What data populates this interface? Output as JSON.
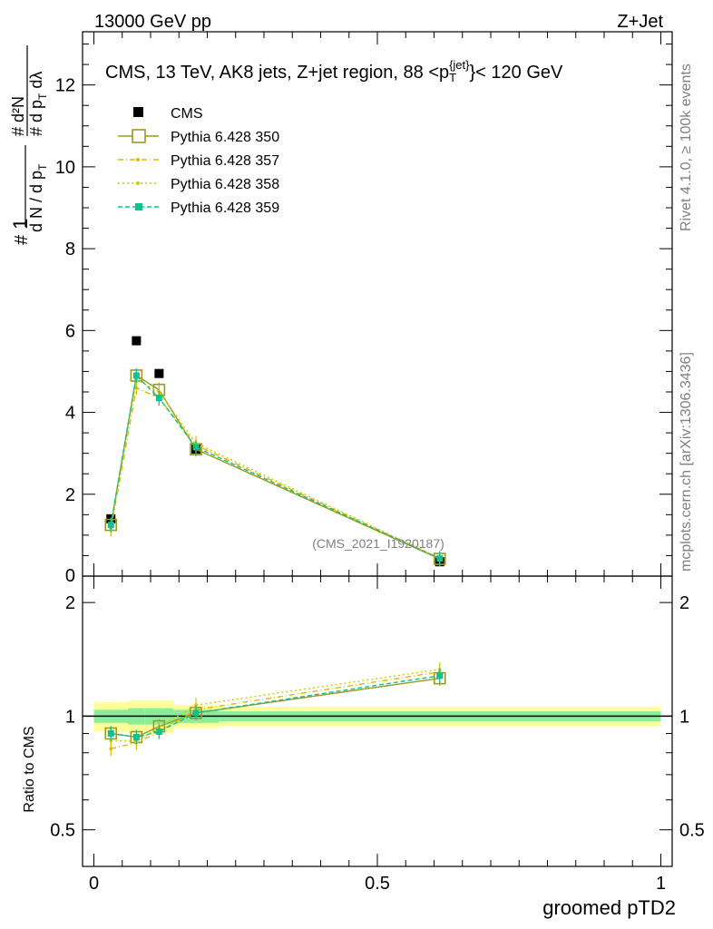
{
  "header": {
    "left": "13000 GeV pp",
    "right": "Z+Jet"
  },
  "side_labels": {
    "rivet": "Rivet 4.1.0, ≥ 100k events",
    "mcplots": "mcplots.cern.ch [arXiv:1306.3436]"
  },
  "chart_data": {
    "type": "line",
    "title": "CMS, 13 TeV, AK8 jets, Z+jet region, 88 <p_T^{jet}< 120 GeV",
    "title_parts": {
      "prefix": "CMS, 13 TeV, AK8 jets, Z+jet region, 88 <p",
      "sub": "T",
      "sup": "{jet}",
      "suffix": "}< 120 GeV"
    },
    "watermark": "(CMS_2021_I1920187)",
    "xlabel": "groomed pTD2",
    "ylabel_main": "1/(dN/dp_T) d²N/(dp_T dλ)",
    "ylabel_ratio": "Ratio to CMS",
    "xlim": [
      -0.02,
      1.02
    ],
    "ylim_main": [
      0,
      13.3
    ],
    "ylim_ratio": [
      0.4,
      2.35
    ],
    "x_ticks": [
      "0",
      "0.5",
      "1"
    ],
    "x_tick_values": [
      0,
      0.5,
      1
    ],
    "y_ticks_main": [
      "2",
      "4",
      "6",
      "8",
      "10",
      "12"
    ],
    "y_tick_values_main": [
      2,
      4,
      6,
      8,
      10,
      12
    ],
    "y_zero_label": "0",
    "y_ticks_ratio": [
      "0.5",
      "1",
      "2"
    ],
    "y_tick_values_ratio": [
      0.5,
      1,
      2
    ],
    "x": [
      0.03,
      0.075,
      0.115,
      0.18,
      0.61
    ],
    "bin_edges": [
      0,
      0.06,
      0.09,
      0.14,
      0.22,
      1.0
    ],
    "cms": {
      "name": "CMS",
      "values": [
        1.4,
        5.75,
        4.95,
        3.1,
        0.35
      ]
    },
    "band": {
      "inner": [
        0.04,
        0.05,
        0.05,
        0.04,
        0.03
      ],
      "outer": [
        0.09,
        0.1,
        0.1,
        0.07,
        0.06
      ]
    },
    "series": [
      {
        "name": "Pythia 6.428 350",
        "color": "#9a9a20",
        "style": "solid",
        "marker": "open-square",
        "values": [
          1.25,
          4.9,
          4.55,
          3.1,
          0.42
        ],
        "ratio": [
          0.9,
          0.88,
          0.94,
          1.02,
          1.26
        ]
      },
      {
        "name": "Pythia 6.428 357",
        "color": "#e0b800",
        "style": "dashdot",
        "marker": "small",
        "values": [
          1.15,
          4.6,
          4.35,
          3.2,
          0.43
        ],
        "ratio": [
          0.82,
          0.85,
          0.91,
          1.04,
          1.31
        ]
      },
      {
        "name": "Pythia 6.428 358",
        "color": "#cccc00",
        "style": "dotted",
        "marker": "small",
        "values": [
          1.2,
          4.8,
          4.5,
          3.25,
          0.44
        ],
        "ratio": [
          0.86,
          0.86,
          0.93,
          1.07,
          1.33
        ]
      },
      {
        "name": "Pythia 6.428 359",
        "color": "#10c090",
        "style": "dashed",
        "marker": "filled-square",
        "values": [
          1.25,
          4.9,
          4.35,
          3.15,
          0.43
        ],
        "ratio": [
          0.9,
          0.88,
          0.91,
          1.02,
          1.28
        ]
      }
    ]
  }
}
